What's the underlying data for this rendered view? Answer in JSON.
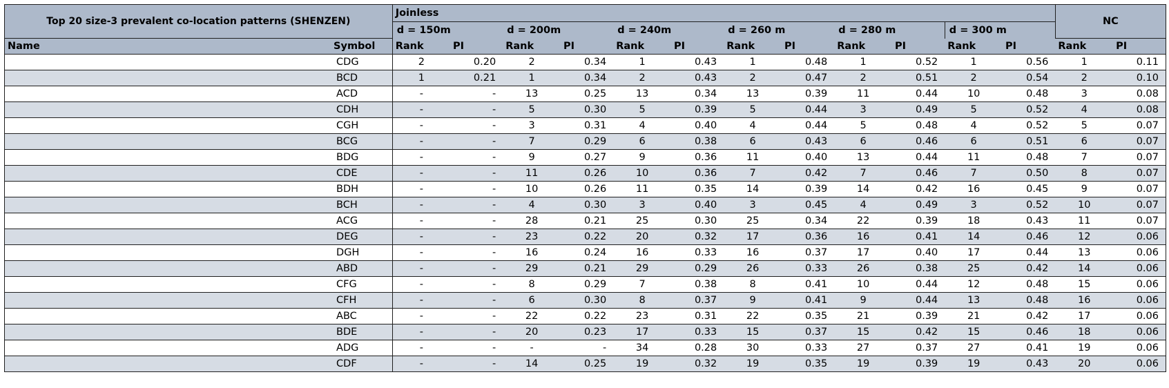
{
  "title": "Top 20 size-3 prevalent co-location patterns (SHENZEN)",
  "group_joinless": "Joinless",
  "group_nc": "NC",
  "distances": [
    "d = 150m",
    "d = 200m",
    "d = 240m",
    "d = 260 m",
    "d = 280 m",
    "d = 300 m"
  ],
  "col_name": "Name",
  "col_symbol": "Symbol",
  "col_rank": "Rank",
  "col_pi": "PI",
  "rows": [
    {
      "symbol": "CDG",
      "cells": [
        "2",
        "0.20",
        "2",
        "0.34",
        "1",
        "0.43",
        "1",
        "0.48",
        "1",
        "0.52",
        "1",
        "0.56",
        "1",
        "0.11"
      ]
    },
    {
      "symbol": "BCD",
      "cells": [
        "1",
        "0.21",
        "1",
        "0.34",
        "2",
        "0.43",
        "2",
        "0.47",
        "2",
        "0.51",
        "2",
        "0.54",
        "2",
        "0.10"
      ]
    },
    {
      "symbol": "ACD",
      "cells": [
        "-",
        "-",
        "13",
        "0.25",
        "13",
        "0.34",
        "13",
        "0.39",
        "11",
        "0.44",
        "10",
        "0.48",
        "3",
        "0.08"
      ]
    },
    {
      "symbol": "CDH",
      "cells": [
        "-",
        "-",
        "5",
        "0.30",
        "5",
        "0.39",
        "5",
        "0.44",
        "3",
        "0.49",
        "5",
        "0.52",
        "4",
        "0.08"
      ]
    },
    {
      "symbol": "CGH",
      "cells": [
        "-",
        "-",
        "3",
        "0.31",
        "4",
        "0.40",
        "4",
        "0.44",
        "5",
        "0.48",
        "4",
        "0.52",
        "5",
        "0.07"
      ]
    },
    {
      "symbol": "BCG",
      "cells": [
        "-",
        "-",
        "7",
        "0.29",
        "6",
        "0.38",
        "6",
        "0.43",
        "6",
        "0.46",
        "6",
        "0.51",
        "6",
        "0.07"
      ]
    },
    {
      "symbol": "BDG",
      "cells": [
        "-",
        "-",
        "9",
        "0.27",
        "9",
        "0.36",
        "11",
        "0.40",
        "13",
        "0.44",
        "11",
        "0.48",
        "7",
        "0.07"
      ]
    },
    {
      "symbol": "CDE",
      "cells": [
        "-",
        "-",
        "11",
        "0.26",
        "10",
        "0.36",
        "7",
        "0.42",
        "7",
        "0.46",
        "7",
        "0.50",
        "8",
        "0.07"
      ]
    },
    {
      "symbol": "BDH",
      "cells": [
        "-",
        "-",
        "10",
        "0.26",
        "11",
        "0.35",
        "14",
        "0.39",
        "14",
        "0.42",
        "16",
        "0.45",
        "9",
        "0.07"
      ]
    },
    {
      "symbol": "BCH",
      "cells": [
        "-",
        "-",
        "4",
        "0.30",
        "3",
        "0.40",
        "3",
        "0.45",
        "4",
        "0.49",
        "3",
        "0.52",
        "10",
        "0.07"
      ]
    },
    {
      "symbol": "ACG",
      "cells": [
        "-",
        "-",
        "28",
        "0.21",
        "25",
        "0.30",
        "25",
        "0.34",
        "22",
        "0.39",
        "18",
        "0.43",
        "11",
        "0.07"
      ]
    },
    {
      "symbol": "DEG",
      "cells": [
        "-",
        "-",
        "23",
        "0.22",
        "20",
        "0.32",
        "17",
        "0.36",
        "16",
        "0.41",
        "14",
        "0.46",
        "12",
        "0.06"
      ]
    },
    {
      "symbol": "DGH",
      "cells": [
        "-",
        "-",
        "16",
        "0.24",
        "16",
        "0.33",
        "16",
        "0.37",
        "17",
        "0.40",
        "17",
        "0.44",
        "13",
        "0.06"
      ]
    },
    {
      "symbol": "ABD",
      "cells": [
        "-",
        "-",
        "29",
        "0.21",
        "29",
        "0.29",
        "26",
        "0.33",
        "26",
        "0.38",
        "25",
        "0.42",
        "14",
        "0.06"
      ]
    },
    {
      "symbol": "CFG",
      "cells": [
        "-",
        "-",
        "8",
        "0.29",
        "7",
        "0.38",
        "8",
        "0.41",
        "10",
        "0.44",
        "12",
        "0.48",
        "15",
        "0.06"
      ]
    },
    {
      "symbol": "CFH",
      "cells": [
        "-",
        "-",
        "6",
        "0.30",
        "8",
        "0.37",
        "9",
        "0.41",
        "9",
        "0.44",
        "13",
        "0.48",
        "16",
        "0.06"
      ]
    },
    {
      "symbol": "ABC",
      "cells": [
        "-",
        "-",
        "22",
        "0.22",
        "23",
        "0.31",
        "22",
        "0.35",
        "21",
        "0.39",
        "21",
        "0.42",
        "17",
        "0.06"
      ]
    },
    {
      "symbol": "BDE",
      "cells": [
        "-",
        "-",
        "20",
        "0.23",
        "17",
        "0.33",
        "15",
        "0.37",
        "15",
        "0.42",
        "15",
        "0.46",
        "18",
        "0.06"
      ]
    },
    {
      "symbol": "ADG",
      "cells": [
        "-",
        "-",
        "-",
        "-",
        "34",
        "0.28",
        "30",
        "0.33",
        "27",
        "0.37",
        "27",
        "0.41",
        "19",
        "0.06"
      ]
    },
    {
      "symbol": "CDF",
      "cells": [
        "-",
        "-",
        "14",
        "0.25",
        "19",
        "0.32",
        "19",
        "0.35",
        "19",
        "0.39",
        "19",
        "0.43",
        "20",
        "0.06"
      ]
    }
  ],
  "colors": {
    "header_bg": "#adb9ca",
    "stripe_bg": "#d6dce4",
    "border": "#1f1f1f"
  }
}
